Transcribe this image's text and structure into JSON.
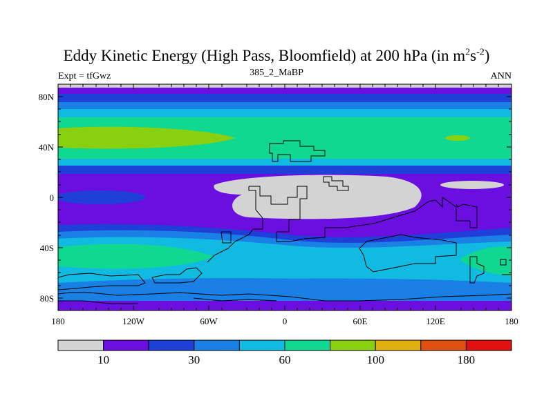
{
  "title": {
    "main": "Eddy Kinetic Energy (High Pass, Bloomfield) at 200 hPa (in m",
    "sup1": "2",
    "mid": "s",
    "sup2": "-2",
    "end": ")"
  },
  "left_label": "Expt = tfGwz",
  "center_label": "385_2_MaBP",
  "right_label": "ANN",
  "map": {
    "lat_ticks": [
      "80N",
      "40N",
      "0",
      "40S",
      "80S"
    ],
    "lon_ticks": [
      "180",
      "120W",
      "60W",
      "0",
      "60E",
      "120E",
      "180"
    ]
  },
  "colorbar": {
    "colors": [
      "#d3d3d3",
      "#6a0fe0",
      "#1e3fd8",
      "#1a80e6",
      "#10bae0",
      "#10d890",
      "#88d010",
      "#e0b010",
      "#e05010",
      "#e01010"
    ],
    "labels": [
      {
        "text": "10",
        "at_boundary": 1
      },
      {
        "text": "30",
        "at_boundary": 3
      },
      {
        "text": "60",
        "at_boundary": 5
      },
      {
        "text": "100",
        "at_boundary": 7
      },
      {
        "text": "180",
        "at_boundary": 9
      }
    ]
  }
}
